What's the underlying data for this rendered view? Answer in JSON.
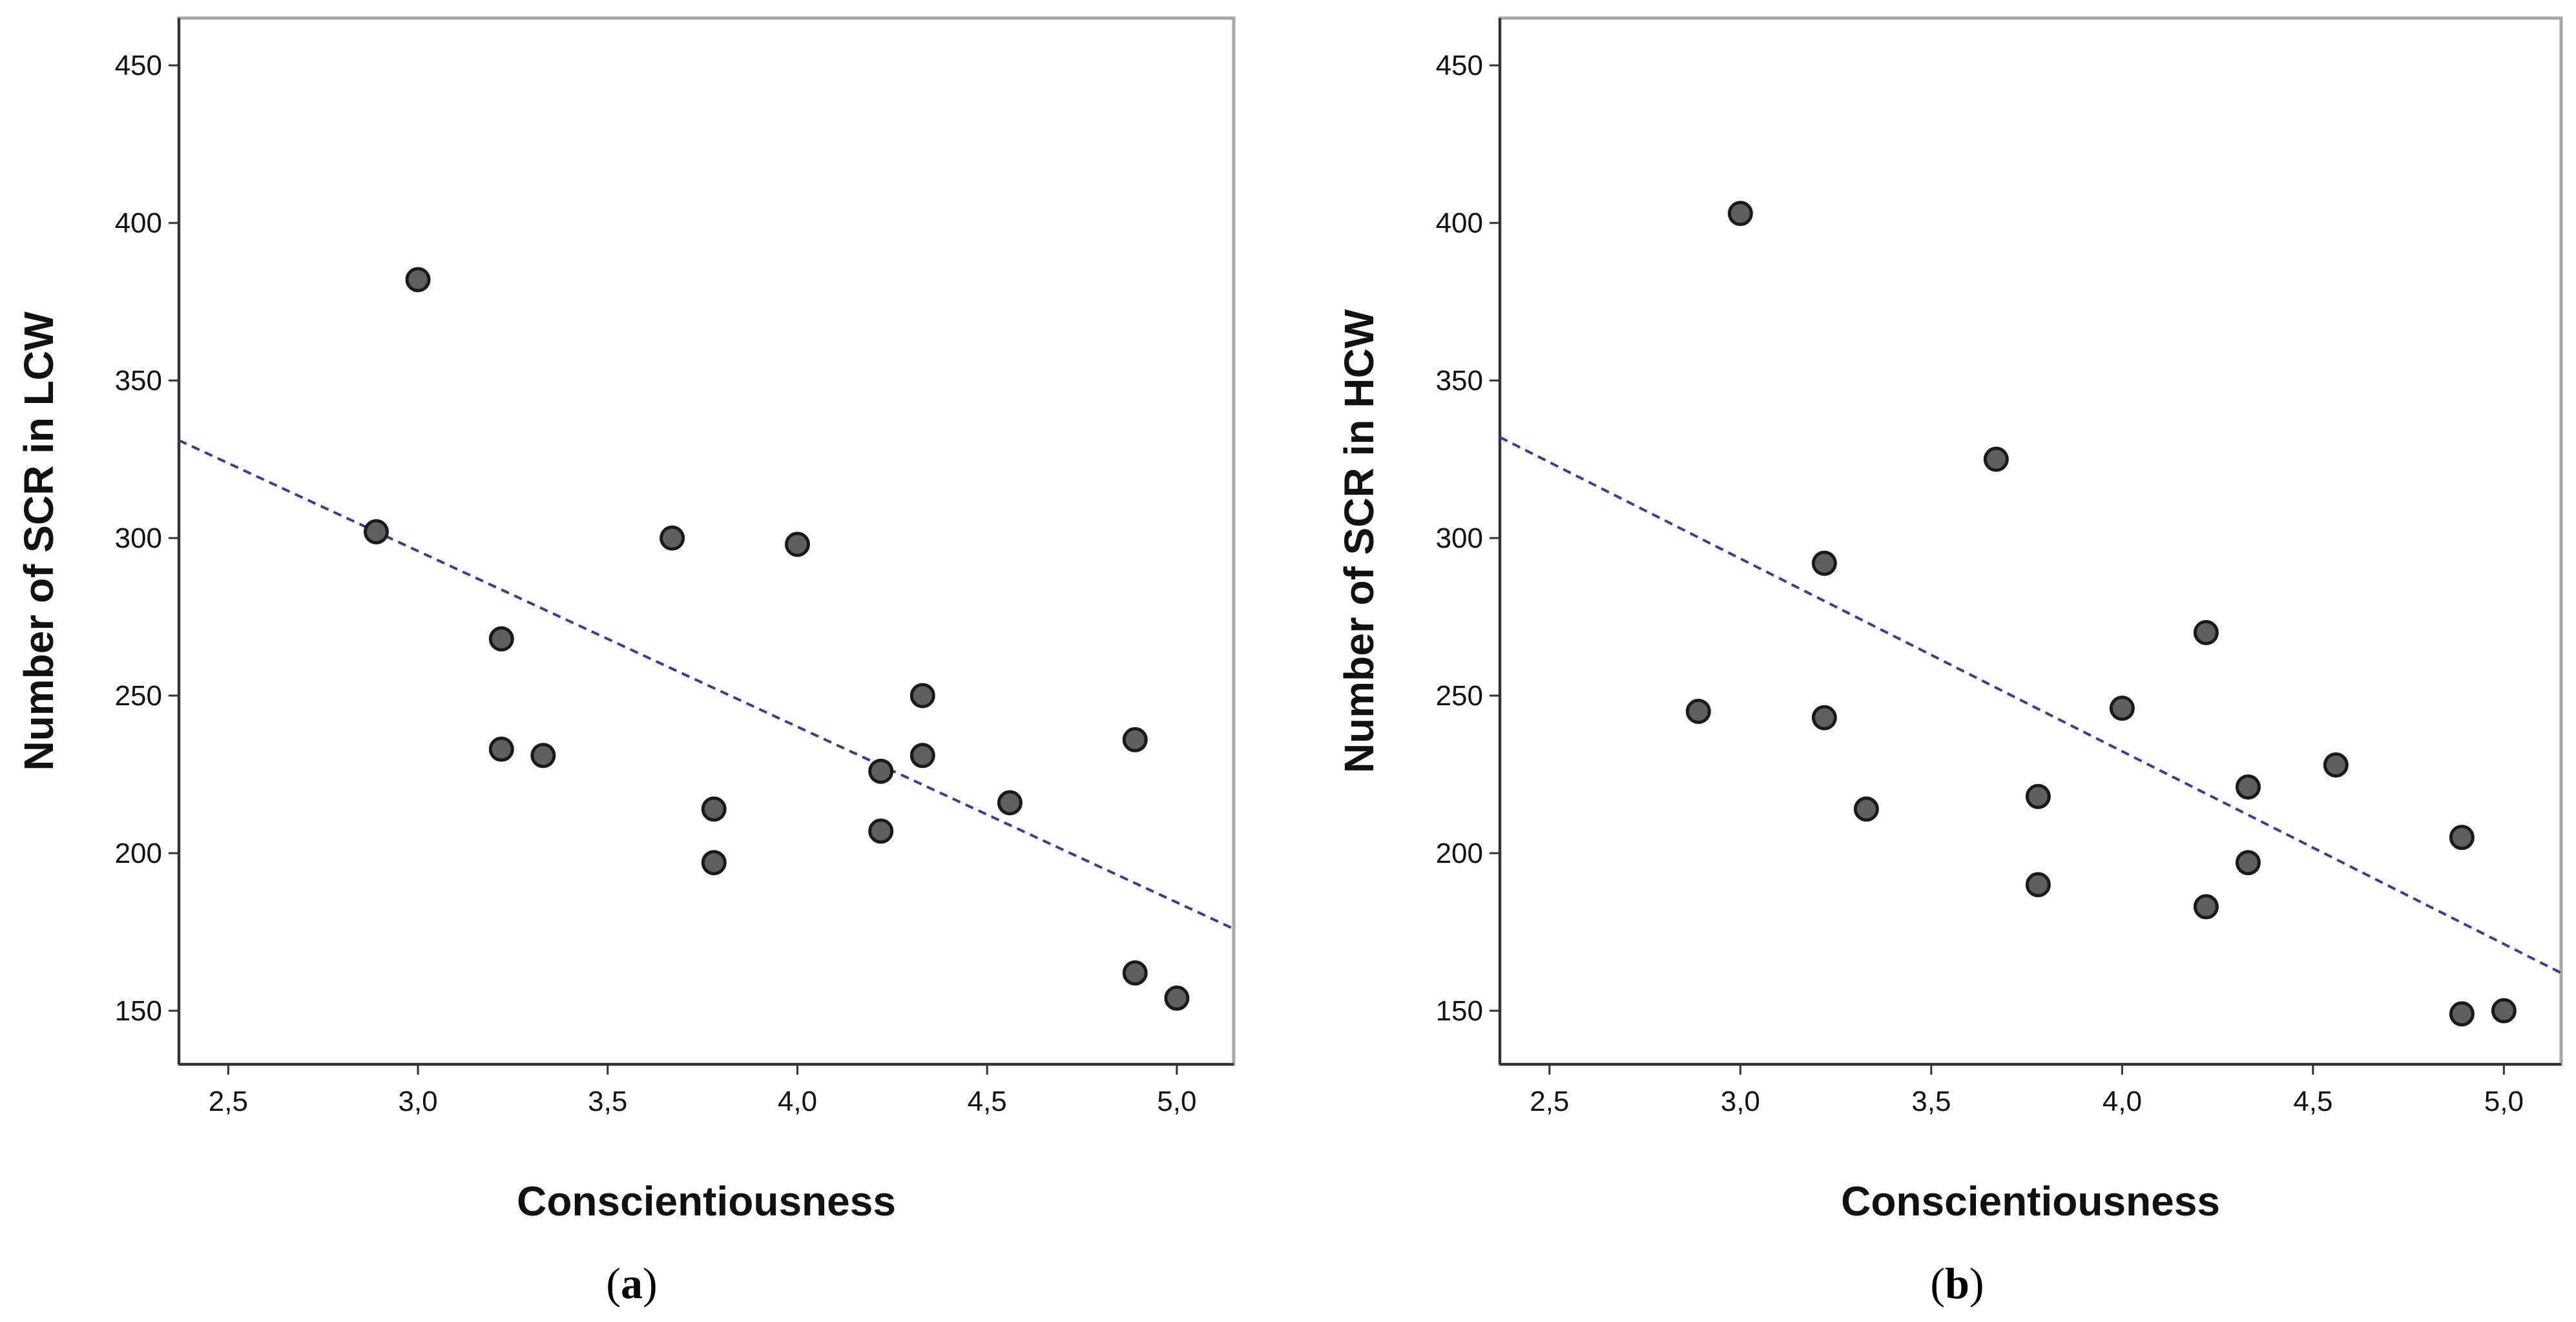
{
  "chart_data": [
    {
      "type": "scatter",
      "panel_label_open": "(",
      "panel_label_letter": "a",
      "panel_label_close": ")",
      "xlabel": "Conscientiousness",
      "ylabel": "Number of SCR in LCW",
      "xlim": [
        2.37,
        5.15
      ],
      "ylim": [
        133,
        465
      ],
      "xticks": [
        2.5,
        3.0,
        3.5,
        4.0,
        4.5,
        5.0
      ],
      "xtick_labels": [
        "2,5",
        "3,0",
        "3,5",
        "4,0",
        "4,5",
        "5,0"
      ],
      "yticks": [
        150,
        200,
        250,
        300,
        350,
        400,
        450
      ],
      "ytick_labels": [
        "150",
        "200",
        "250",
        "300",
        "350",
        "400",
        "450"
      ],
      "points": [
        {
          "x": 2.89,
          "y": 302
        },
        {
          "x": 3.0,
          "y": 382
        },
        {
          "x": 3.22,
          "y": 268
        },
        {
          "x": 3.22,
          "y": 233
        },
        {
          "x": 3.33,
          "y": 231
        },
        {
          "x": 3.67,
          "y": 300
        },
        {
          "x": 3.78,
          "y": 214
        },
        {
          "x": 3.78,
          "y": 197
        },
        {
          "x": 4.0,
          "y": 298
        },
        {
          "x": 4.22,
          "y": 226
        },
        {
          "x": 4.22,
          "y": 207
        },
        {
          "x": 4.33,
          "y": 250
        },
        {
          "x": 4.33,
          "y": 231
        },
        {
          "x": 4.56,
          "y": 216
        },
        {
          "x": 4.89,
          "y": 236
        },
        {
          "x": 4.89,
          "y": 162
        },
        {
          "x": 5.0,
          "y": 154
        }
      ],
      "fit_line": {
        "x": [
          2.37,
          5.15
        ],
        "y": [
          331,
          176
        ]
      },
      "colors": {
        "point_fill": "#5f5f5f",
        "point_stroke": "#1a1a1a",
        "fit_line": "#3a3aa0",
        "frame": "#a8a8a8",
        "axis": "#333333"
      }
    },
    {
      "type": "scatter",
      "panel_label_open": "(",
      "panel_label_letter": "b",
      "panel_label_close": ")",
      "xlabel": "Conscientiousness",
      "ylabel": "Number of SCR in HCW",
      "xlim": [
        2.37,
        5.15
      ],
      "ylim": [
        133,
        465
      ],
      "xticks": [
        2.5,
        3.0,
        3.5,
        4.0,
        4.5,
        5.0
      ],
      "xtick_labels": [
        "2,5",
        "3,0",
        "3,5",
        "4,0",
        "4,5",
        "5,0"
      ],
      "yticks": [
        150,
        200,
        250,
        300,
        350,
        400,
        450
      ],
      "ytick_labels": [
        "150",
        "200",
        "250",
        "300",
        "350",
        "400",
        "450"
      ],
      "points": [
        {
          "x": 2.89,
          "y": 245
        },
        {
          "x": 3.0,
          "y": 403
        },
        {
          "x": 3.22,
          "y": 292
        },
        {
          "x": 3.22,
          "y": 243
        },
        {
          "x": 3.33,
          "y": 214
        },
        {
          "x": 3.67,
          "y": 325
        },
        {
          "x": 3.78,
          "y": 218
        },
        {
          "x": 3.78,
          "y": 190
        },
        {
          "x": 4.0,
          "y": 246
        },
        {
          "x": 4.22,
          "y": 270
        },
        {
          "x": 4.22,
          "y": 183
        },
        {
          "x": 4.33,
          "y": 221
        },
        {
          "x": 4.33,
          "y": 197
        },
        {
          "x": 4.56,
          "y": 228
        },
        {
          "x": 4.89,
          "y": 205
        },
        {
          "x": 4.89,
          "y": 149
        },
        {
          "x": 5.0,
          "y": 150
        }
      ],
      "fit_line": {
        "x": [
          2.37,
          5.15
        ],
        "y": [
          332,
          162
        ]
      },
      "colors": {
        "point_fill": "#5f5f5f",
        "point_stroke": "#1a1a1a",
        "fit_line": "#3a3aa0",
        "frame": "#a8a8a8",
        "axis": "#333333"
      }
    }
  ]
}
